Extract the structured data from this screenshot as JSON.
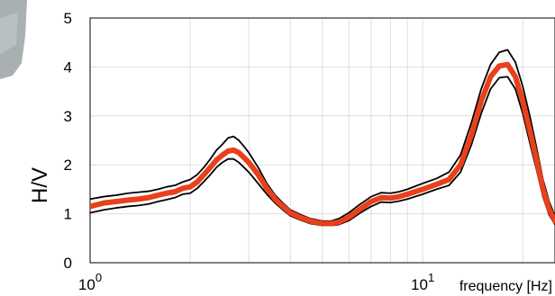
{
  "chart_data": {
    "type": "line",
    "xscale": "log",
    "xlim": [
      1,
      25
    ],
    "ylim": [
      0,
      5
    ],
    "xlabel": "frequency [Hz]",
    "ylabel": "H/V",
    "x_ticks": [
      {
        "value": 1,
        "base": "10",
        "exp": "0"
      },
      {
        "value": 10,
        "base": "10",
        "exp": "1"
      }
    ],
    "y_ticks": [
      "0",
      "1",
      "2",
      "3",
      "4",
      "5"
    ],
    "grid": true,
    "colors": {
      "mean": "#e8401c",
      "bounds": "#000000",
      "grid": "#dedede"
    },
    "series": [
      {
        "role": "mean",
        "color": "#e8401c",
        "points": [
          [
            1.0,
            1.15
          ],
          [
            1.1,
            1.22
          ],
          [
            1.2,
            1.25
          ],
          [
            1.3,
            1.28
          ],
          [
            1.4,
            1.3
          ],
          [
            1.5,
            1.33
          ],
          [
            1.6,
            1.38
          ],
          [
            1.7,
            1.42
          ],
          [
            1.8,
            1.45
          ],
          [
            1.9,
            1.52
          ],
          [
            2.0,
            1.55
          ],
          [
            2.1,
            1.65
          ],
          [
            2.2,
            1.8
          ],
          [
            2.3,
            1.95
          ],
          [
            2.4,
            2.1
          ],
          [
            2.5,
            2.2
          ],
          [
            2.6,
            2.28
          ],
          [
            2.7,
            2.3
          ],
          [
            2.8,
            2.25
          ],
          [
            2.9,
            2.15
          ],
          [
            3.0,
            2.05
          ],
          [
            3.2,
            1.8
          ],
          [
            3.4,
            1.52
          ],
          [
            3.6,
            1.3
          ],
          [
            3.8,
            1.15
          ],
          [
            4.0,
            1.02
          ],
          [
            4.3,
            0.92
          ],
          [
            4.6,
            0.85
          ],
          [
            5.0,
            0.8
          ],
          [
            5.3,
            0.8
          ],
          [
            5.6,
            0.83
          ],
          [
            6.0,
            0.93
          ],
          [
            6.5,
            1.1
          ],
          [
            7.0,
            1.25
          ],
          [
            7.5,
            1.33
          ],
          [
            8.0,
            1.32
          ],
          [
            8.5,
            1.35
          ],
          [
            9.0,
            1.4
          ],
          [
            10.0,
            1.5
          ],
          [
            11.0,
            1.6
          ],
          [
            12.0,
            1.7
          ],
          [
            13.0,
            2.0
          ],
          [
            14.0,
            2.6
          ],
          [
            15.0,
            3.3
          ],
          [
            16.0,
            3.8
          ],
          [
            17.0,
            4.02
          ],
          [
            18.0,
            4.05
          ],
          [
            19.0,
            3.8
          ],
          [
            20.0,
            3.3
          ],
          [
            21.0,
            2.7
          ],
          [
            22.0,
            2.1
          ],
          [
            23.0,
            1.5
          ],
          [
            24.0,
            1.1
          ],
          [
            25.0,
            0.85
          ]
        ]
      },
      {
        "role": "upper",
        "color": "#000000",
        "points": [
          [
            1.0,
            1.3
          ],
          [
            1.1,
            1.35
          ],
          [
            1.2,
            1.38
          ],
          [
            1.3,
            1.42
          ],
          [
            1.4,
            1.44
          ],
          [
            1.5,
            1.46
          ],
          [
            1.6,
            1.5
          ],
          [
            1.7,
            1.55
          ],
          [
            1.8,
            1.58
          ],
          [
            1.9,
            1.65
          ],
          [
            2.0,
            1.7
          ],
          [
            2.1,
            1.8
          ],
          [
            2.2,
            1.95
          ],
          [
            2.3,
            2.12
          ],
          [
            2.4,
            2.3
          ],
          [
            2.5,
            2.42
          ],
          [
            2.6,
            2.55
          ],
          [
            2.7,
            2.58
          ],
          [
            2.8,
            2.5
          ],
          [
            2.9,
            2.38
          ],
          [
            3.0,
            2.25
          ],
          [
            3.2,
            1.95
          ],
          [
            3.4,
            1.62
          ],
          [
            3.6,
            1.38
          ],
          [
            3.8,
            1.22
          ],
          [
            4.0,
            1.08
          ],
          [
            4.3,
            0.98
          ],
          [
            4.6,
            0.9
          ],
          [
            5.0,
            0.85
          ],
          [
            5.3,
            0.85
          ],
          [
            5.6,
            0.9
          ],
          [
            6.0,
            1.02
          ],
          [
            6.5,
            1.2
          ],
          [
            7.0,
            1.35
          ],
          [
            7.5,
            1.43
          ],
          [
            8.0,
            1.42
          ],
          [
            8.5,
            1.45
          ],
          [
            9.0,
            1.5
          ],
          [
            10.0,
            1.62
          ],
          [
            11.0,
            1.72
          ],
          [
            12.0,
            1.85
          ],
          [
            13.0,
            2.2
          ],
          [
            14.0,
            2.85
          ],
          [
            15.0,
            3.55
          ],
          [
            16.0,
            4.05
          ],
          [
            17.0,
            4.3
          ],
          [
            18.0,
            4.35
          ],
          [
            19.0,
            4.1
          ],
          [
            20.0,
            3.6
          ],
          [
            21.0,
            3.0
          ],
          [
            22.0,
            2.35
          ],
          [
            23.0,
            1.7
          ],
          [
            24.0,
            1.25
          ],
          [
            25.0,
            0.95
          ]
        ]
      },
      {
        "role": "lower",
        "color": "#000000",
        "points": [
          [
            1.0,
            1.02
          ],
          [
            1.1,
            1.08
          ],
          [
            1.2,
            1.12
          ],
          [
            1.3,
            1.15
          ],
          [
            1.4,
            1.17
          ],
          [
            1.5,
            1.2
          ],
          [
            1.6,
            1.25
          ],
          [
            1.7,
            1.29
          ],
          [
            1.8,
            1.33
          ],
          [
            1.9,
            1.4
          ],
          [
            2.0,
            1.42
          ],
          [
            2.1,
            1.52
          ],
          [
            2.2,
            1.66
          ],
          [
            2.3,
            1.8
          ],
          [
            2.4,
            1.95
          ],
          [
            2.5,
            2.05
          ],
          [
            2.6,
            2.12
          ],
          [
            2.7,
            2.12
          ],
          [
            2.8,
            2.05
          ],
          [
            2.9,
            1.95
          ],
          [
            3.0,
            1.85
          ],
          [
            3.2,
            1.62
          ],
          [
            3.4,
            1.4
          ],
          [
            3.6,
            1.22
          ],
          [
            3.8,
            1.08
          ],
          [
            4.0,
            0.96
          ],
          [
            4.3,
            0.87
          ],
          [
            4.6,
            0.8
          ],
          [
            5.0,
            0.76
          ],
          [
            5.3,
            0.76
          ],
          [
            5.6,
            0.78
          ],
          [
            6.0,
            0.86
          ],
          [
            6.5,
            1.02
          ],
          [
            7.0,
            1.15
          ],
          [
            7.5,
            1.24
          ],
          [
            8.0,
            1.23
          ],
          [
            8.5,
            1.26
          ],
          [
            9.0,
            1.3
          ],
          [
            10.0,
            1.4
          ],
          [
            11.0,
            1.5
          ],
          [
            12.0,
            1.58
          ],
          [
            13.0,
            1.85
          ],
          [
            14.0,
            2.4
          ],
          [
            15.0,
            3.05
          ],
          [
            16.0,
            3.55
          ],
          [
            17.0,
            3.78
          ],
          [
            18.0,
            3.8
          ],
          [
            19.0,
            3.55
          ],
          [
            20.0,
            3.05
          ],
          [
            21.0,
            2.45
          ],
          [
            22.0,
            1.9
          ],
          [
            23.0,
            1.35
          ],
          [
            24.0,
            0.98
          ],
          [
            25.0,
            0.78
          ]
        ]
      }
    ]
  }
}
